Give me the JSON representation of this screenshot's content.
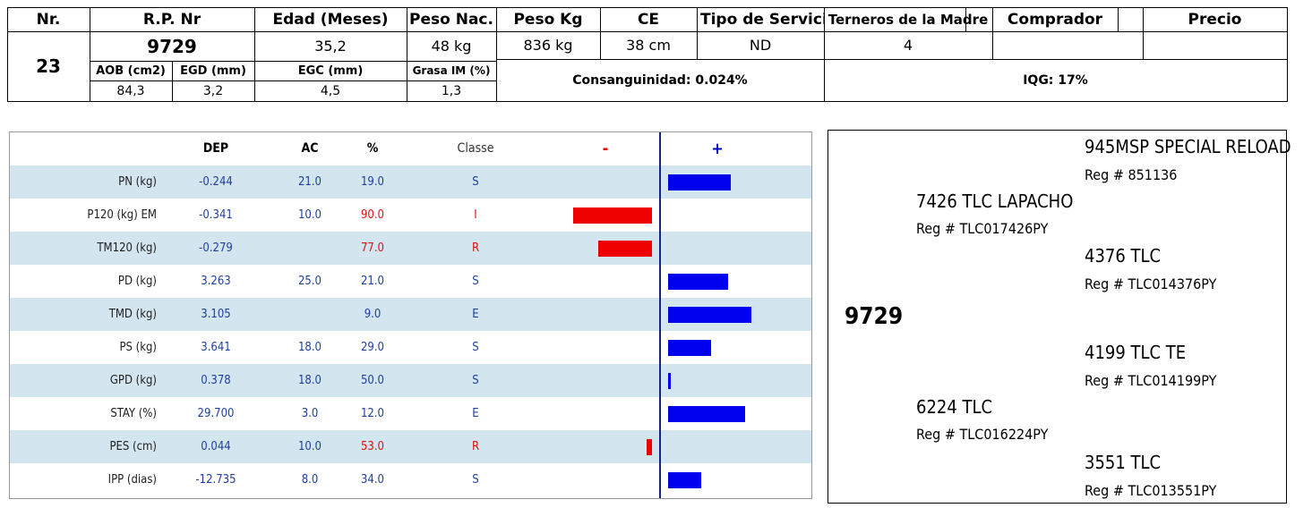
{
  "header": {
    "nr_label": "Nr.",
    "rp_label": "R.P. Nr",
    "edad_label": "Edad (Meses)",
    "peso_nac_label": "Peso Nac.",
    "peso_kg_label": "Peso Kg",
    "ce_label": "CE",
    "tipo_servicio_label": "Tipo de Servicio",
    "terneros_label": "Terneros de la Madre",
    "comprador_label": "Comprador",
    "precio_label": "Precio",
    "nr_value": "23",
    "rp_value": "9729",
    "edad_value": "35,2",
    "peso_nac_value": "48 kg",
    "peso_kg_value": "836 kg",
    "ce_value": "38 cm",
    "tipo_servicio_value": "ND",
    "terneros_value": "4",
    "comprador_value": "",
    "precio_value": "",
    "aob_label": "AOB (cm2)",
    "egd_label": "EGD (mm)",
    "egc_label": "EGC (mm)",
    "grasa_label": "Grasa IM (%)",
    "aob_value": "84,3",
    "egd_value": "3,2",
    "egc_value": "4,5",
    "grasa_value": "1,3",
    "consanguinidad": "Consanguinidad: 0.024%",
    "iqg": "IQG: 17%"
  },
  "epd": {
    "headers": {
      "dep": "DEP",
      "ac": "AC",
      "pct": "%",
      "classe": "Classe",
      "minus": "-",
      "plus": "+"
    },
    "colors": {
      "positive": "#0000ee",
      "negative": "#ee0000",
      "row_alt": "#d3e5ef"
    },
    "rows": [
      {
        "label": "PN (kg)",
        "dep": "-0.244",
        "ac": "21.0",
        "pct": "19.0",
        "classe": "S",
        "bar": 0.8,
        "red": false
      },
      {
        "label": "P120 (kg) EM",
        "dep": "-0.341",
        "ac": "10.0",
        "pct": "90.0",
        "classe": "I",
        "bar": -1.0,
        "red": true
      },
      {
        "label": "TM120 (kg)",
        "dep": "-0.279",
        "ac": "",
        "pct": "77.0",
        "classe": "R",
        "bar": -0.68,
        "red": true
      },
      {
        "label": "PD (kg)",
        "dep": "3.263",
        "ac": "25.0",
        "pct": "21.0",
        "classe": "S",
        "bar": 0.76,
        "red": false
      },
      {
        "label": "TMD (kg)",
        "dep": "3.105",
        "ac": "",
        "pct": "9.0",
        "classe": "E",
        "bar": 1.06,
        "red": false
      },
      {
        "label": "PS (kg)",
        "dep": "3.641",
        "ac": "18.0",
        "pct": "29.0",
        "classe": "S",
        "bar": 0.55,
        "red": false
      },
      {
        "label": "GPD (kg)",
        "dep": "0.378",
        "ac": "18.0",
        "pct": "50.0",
        "classe": "S",
        "bar": 0.03,
        "red": false
      },
      {
        "label": "STAY (%)",
        "dep": "29.700",
        "ac": "3.0",
        "pct": "12.0",
        "classe": "E",
        "bar": 0.98,
        "red": false
      },
      {
        "label": "PES (cm)",
        "dep": "0.044",
        "ac": "10.0",
        "pct": "53.0",
        "classe": "R",
        "bar": -0.07,
        "red": true
      },
      {
        "label": "IPP (dias)",
        "dep": "-12.735",
        "ac": "8.0",
        "pct": "34.0",
        "classe": "S",
        "bar": 0.42,
        "red": false
      }
    ]
  },
  "pedigree": {
    "animal": "9729",
    "sire": {
      "name": "7426 TLC LAPACHO",
      "reg": "Reg # TLC017426PY"
    },
    "sire_sire": {
      "name": "945MSP SPECIAL RELOAD",
      "reg": "Reg # 851136"
    },
    "sire_dam": {
      "name": "4376 TLC",
      "reg": "Reg # TLC014376PY"
    },
    "dam": {
      "name": "6224 TLC",
      "reg": "Reg # TLC016224PY"
    },
    "dam_sire": {
      "name": "4199 TLC TE",
      "reg": "Reg # TLC014199PY"
    },
    "dam_dam": {
      "name": "3551 TLC",
      "reg": "Reg # TLC013551PY"
    }
  }
}
